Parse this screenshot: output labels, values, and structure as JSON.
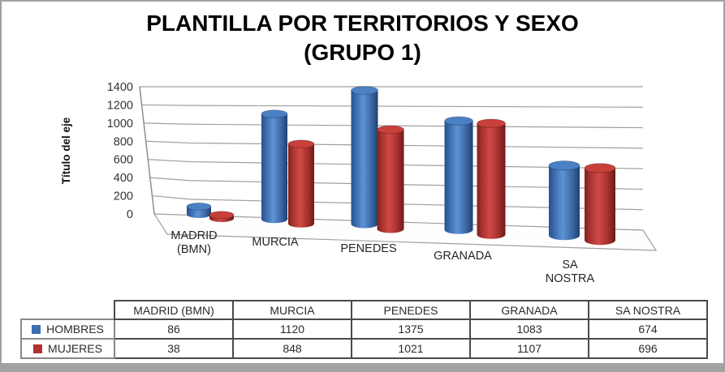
{
  "title": {
    "line1": "PLANTILLA POR TERRITORIOS Y SEXO",
    "line2": "(GRUPO 1)"
  },
  "chart_data": {
    "type": "bar",
    "subtype": "3d-cylinder",
    "title": "PLANTILLA POR TERRITORIOS Y SEXO (GRUPO 1)",
    "xlabel": "",
    "ylabel": "Título del eje",
    "ylim": [
      0,
      1400
    ],
    "ytick_step": 200,
    "yticks": [
      0,
      200,
      400,
      600,
      800,
      1000,
      1200,
      1400
    ],
    "grid": true,
    "legend_position": "table-below",
    "categories": [
      {
        "label": "MADRID (BMN)",
        "lines": [
          "MADRID",
          "(BMN)"
        ]
      },
      {
        "label": "MURCIA",
        "lines": [
          "MURCIA"
        ]
      },
      {
        "label": "PENEDES",
        "lines": [
          "PENEDES"
        ]
      },
      {
        "label": "GRANADA",
        "lines": [
          "GRANADA"
        ]
      },
      {
        "label": "SA NOSTRA",
        "lines": [
          "SA",
          "NOSTRA"
        ]
      }
    ],
    "series": [
      {
        "name": "HOMBRES",
        "color": "#3d6db1",
        "values": [
          86,
          1120,
          1375,
          1083,
          674
        ]
      },
      {
        "name": "MUJERES",
        "color": "#b23230",
        "values": [
          38,
          848,
          1021,
          1107,
          696
        ]
      }
    ]
  },
  "colors": {
    "hombres_fill": "#3d6db1",
    "mujeres_fill": "#b23230",
    "gridline": "#9f9f9f",
    "axis_line": "#8f8f8f",
    "frame": "#a2a2a2",
    "title_text": "#000000",
    "tick_text": "#333333",
    "category_text": "#262626"
  }
}
